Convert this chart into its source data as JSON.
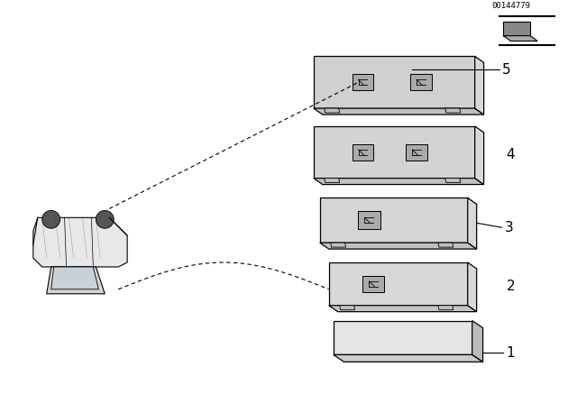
{
  "bg_color": "#ffffff",
  "line_color": "#000000",
  "part_numbers": [
    "1",
    "2",
    "3",
    "4",
    "5"
  ],
  "image_id": "00144779",
  "fig_width": 6.4,
  "fig_height": 4.48,
  "dpi": 100
}
